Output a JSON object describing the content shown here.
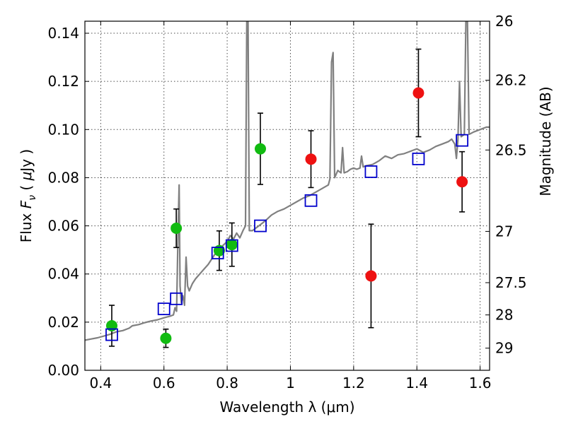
{
  "chart_data": {
    "type": "scatter",
    "xlabel": "Wavelength  λ (μm)",
    "ylabel": "Flux  F_ν  ( μJy )",
    "ylabel_parts": {
      "pre": "Flux  ",
      "sym": "F",
      "sub": "ν",
      "post": "  ( ",
      "mu": "μ",
      "unit": "Jy )"
    },
    "y2label": "Magnitude (AB)",
    "xlim": [
      0.35,
      1.63
    ],
    "ylim": [
      0.0,
      0.145
    ],
    "x_ticks": [
      0.4,
      0.6,
      0.8,
      1.0,
      1.2,
      1.4,
      1.6
    ],
    "x_tick_labels": [
      "0.4",
      "0.6",
      "0.8",
      "1",
      "1.2",
      "1.4",
      "1.6"
    ],
    "y_ticks": [
      0.0,
      0.02,
      0.04,
      0.06,
      0.08,
      0.1,
      0.12,
      0.14
    ],
    "y_tick_labels": [
      "0.00",
      "0.02",
      "0.04",
      "0.06",
      "0.08",
      "0.10",
      "0.12",
      "0.14"
    ],
    "y2_ticks": [
      {
        "label": "26",
        "flux": 0.145
      },
      {
        "label": "26.2",
        "flux": 0.1205
      },
      {
        "label": "26.5",
        "flux": 0.0915
      },
      {
        "label": "27",
        "flux": 0.0577
      },
      {
        "label": "27.5",
        "flux": 0.0364
      },
      {
        "label": "28",
        "flux": 0.023
      },
      {
        "label": "29",
        "flux": 0.0092
      }
    ],
    "grid": true,
    "colors": {
      "optical": "#11bb11",
      "nir": "#ee1111",
      "model": "#0000cc",
      "spectrum": "#808080",
      "errorbar": "#000000"
    },
    "series": [
      {
        "kind": "optical_photometry",
        "marker": "circle",
        "points": [
          {
            "x": 0.435,
            "y": 0.0185,
            "yerr": [
              0.0085,
              0.0085
            ]
          },
          {
            "x": 0.606,
            "y": 0.0133,
            "yerr": [
              0.0038,
              0.0038
            ]
          },
          {
            "x": 0.639,
            "y": 0.059,
            "yerr": [
              0.008,
              0.008
            ]
          },
          {
            "x": 0.775,
            "y": 0.0497,
            "yerr": [
              0.0082,
              0.0082
            ]
          },
          {
            "x": 0.815,
            "y": 0.0522,
            "yerr": [
              0.009,
              0.009
            ]
          },
          {
            "x": 0.905,
            "y": 0.092,
            "yerr": [
              0.0148,
              0.0148
            ]
          }
        ]
      },
      {
        "kind": "nir_photometry",
        "marker": "circle",
        "points": [
          {
            "x": 1.065,
            "y": 0.0877,
            "yerr": [
              0.0118,
              0.0118
            ]
          },
          {
            "x": 1.255,
            "y": 0.0392,
            "yerr": [
              0.0215,
              0.0215
            ]
          },
          {
            "x": 1.405,
            "y": 0.1152,
            "yerr": [
              0.0182,
              0.0182
            ]
          },
          {
            "x": 1.543,
            "y": 0.0783,
            "yerr": [
              0.0125,
              0.0125
            ]
          }
        ]
      },
      {
        "kind": "model_photometry",
        "marker": "open-square",
        "points": [
          {
            "x": 0.435,
            "y": 0.0148
          },
          {
            "x": 0.6,
            "y": 0.0255
          },
          {
            "x": 0.639,
            "y": 0.0297
          },
          {
            "x": 0.77,
            "y": 0.0487
          },
          {
            "x": 0.815,
            "y": 0.0518
          },
          {
            "x": 0.905,
            "y": 0.06
          },
          {
            "x": 1.065,
            "y": 0.0705
          },
          {
            "x": 1.255,
            "y": 0.0825
          },
          {
            "x": 1.405,
            "y": 0.0878
          },
          {
            "x": 1.543,
            "y": 0.0955
          }
        ]
      },
      {
        "kind": "model_spectrum",
        "marker": "line",
        "points": [
          [
            0.35,
            0.0125
          ],
          [
            0.37,
            0.013
          ],
          [
            0.39,
            0.0135
          ],
          [
            0.41,
            0.0142
          ],
          [
            0.43,
            0.015
          ],
          [
            0.44,
            0.0155
          ],
          [
            0.45,
            0.016
          ],
          [
            0.47,
            0.0165
          ],
          [
            0.49,
            0.0175
          ],
          [
            0.5,
            0.0185
          ],
          [
            0.52,
            0.019
          ],
          [
            0.54,
            0.0198
          ],
          [
            0.56,
            0.0205
          ],
          [
            0.58,
            0.021
          ],
          [
            0.6,
            0.0218
          ],
          [
            0.62,
            0.0225
          ],
          [
            0.63,
            0.023
          ],
          [
            0.635,
            0.026
          ],
          [
            0.64,
            0.0245
          ],
          [
            0.645,
            0.06
          ],
          [
            0.648,
            0.077
          ],
          [
            0.651,
            0.035
          ],
          [
            0.655,
            0.028
          ],
          [
            0.66,
            0.031
          ],
          [
            0.665,
            0.027
          ],
          [
            0.67,
            0.047
          ],
          [
            0.675,
            0.035
          ],
          [
            0.68,
            0.033
          ],
          [
            0.69,
            0.036
          ],
          [
            0.7,
            0.038
          ],
          [
            0.72,
            0.041
          ],
          [
            0.74,
            0.044
          ],
          [
            0.76,
            0.048
          ],
          [
            0.78,
            0.051
          ],
          [
            0.8,
            0.0535
          ],
          [
            0.81,
            0.056
          ],
          [
            0.82,
            0.0545
          ],
          [
            0.83,
            0.057
          ],
          [
            0.84,
            0.055
          ],
          [
            0.85,
            0.058
          ],
          [
            0.858,
            0.06
          ],
          [
            0.862,
            0.145
          ],
          [
            0.866,
            0.145
          ],
          [
            0.87,
            0.058
          ],
          [
            0.88,
            0.058
          ],
          [
            0.9,
            0.06
          ],
          [
            0.92,
            0.062
          ],
          [
            0.94,
            0.0645
          ],
          [
            0.96,
            0.066
          ],
          [
            0.98,
            0.067
          ],
          [
            1.0,
            0.0685
          ],
          [
            1.02,
            0.07
          ],
          [
            1.04,
            0.0715
          ],
          [
            1.06,
            0.0725
          ],
          [
            1.08,
            0.074
          ],
          [
            1.1,
            0.0755
          ],
          [
            1.12,
            0.077
          ],
          [
            1.125,
            0.0795
          ],
          [
            1.13,
            0.128
          ],
          [
            1.135,
            0.132
          ],
          [
            1.14,
            0.08
          ],
          [
            1.15,
            0.083
          ],
          [
            1.16,
            0.082
          ],
          [
            1.165,
            0.0925
          ],
          [
            1.17,
            0.082
          ],
          [
            1.18,
            0.0825
          ],
          [
            1.19,
            0.0835
          ],
          [
            1.2,
            0.084
          ],
          [
            1.21,
            0.0835
          ],
          [
            1.22,
            0.084
          ],
          [
            1.225,
            0.089
          ],
          [
            1.23,
            0.0845
          ],
          [
            1.24,
            0.085
          ],
          [
            1.26,
            0.0855
          ],
          [
            1.28,
            0.087
          ],
          [
            1.3,
            0.089
          ],
          [
            1.32,
            0.088
          ],
          [
            1.34,
            0.0895
          ],
          [
            1.36,
            0.09
          ],
          [
            1.38,
            0.091
          ],
          [
            1.4,
            0.092
          ],
          [
            1.42,
            0.0905
          ],
          [
            1.44,
            0.0915
          ],
          [
            1.46,
            0.093
          ],
          [
            1.48,
            0.094
          ],
          [
            1.5,
            0.095
          ],
          [
            1.51,
            0.096
          ],
          [
            1.52,
            0.094
          ],
          [
            1.525,
            0.088
          ],
          [
            1.53,
            0.096
          ],
          [
            1.535,
            0.12
          ],
          [
            1.54,
            0.097
          ],
          [
            1.55,
            0.098
          ],
          [
            1.555,
            0.145
          ],
          [
            1.56,
            0.145
          ],
          [
            1.565,
            0.098
          ],
          [
            1.58,
            0.099
          ],
          [
            1.6,
            0.1
          ],
          [
            1.62,
            0.101
          ],
          [
            1.63,
            0.101
          ]
        ]
      }
    ]
  }
}
